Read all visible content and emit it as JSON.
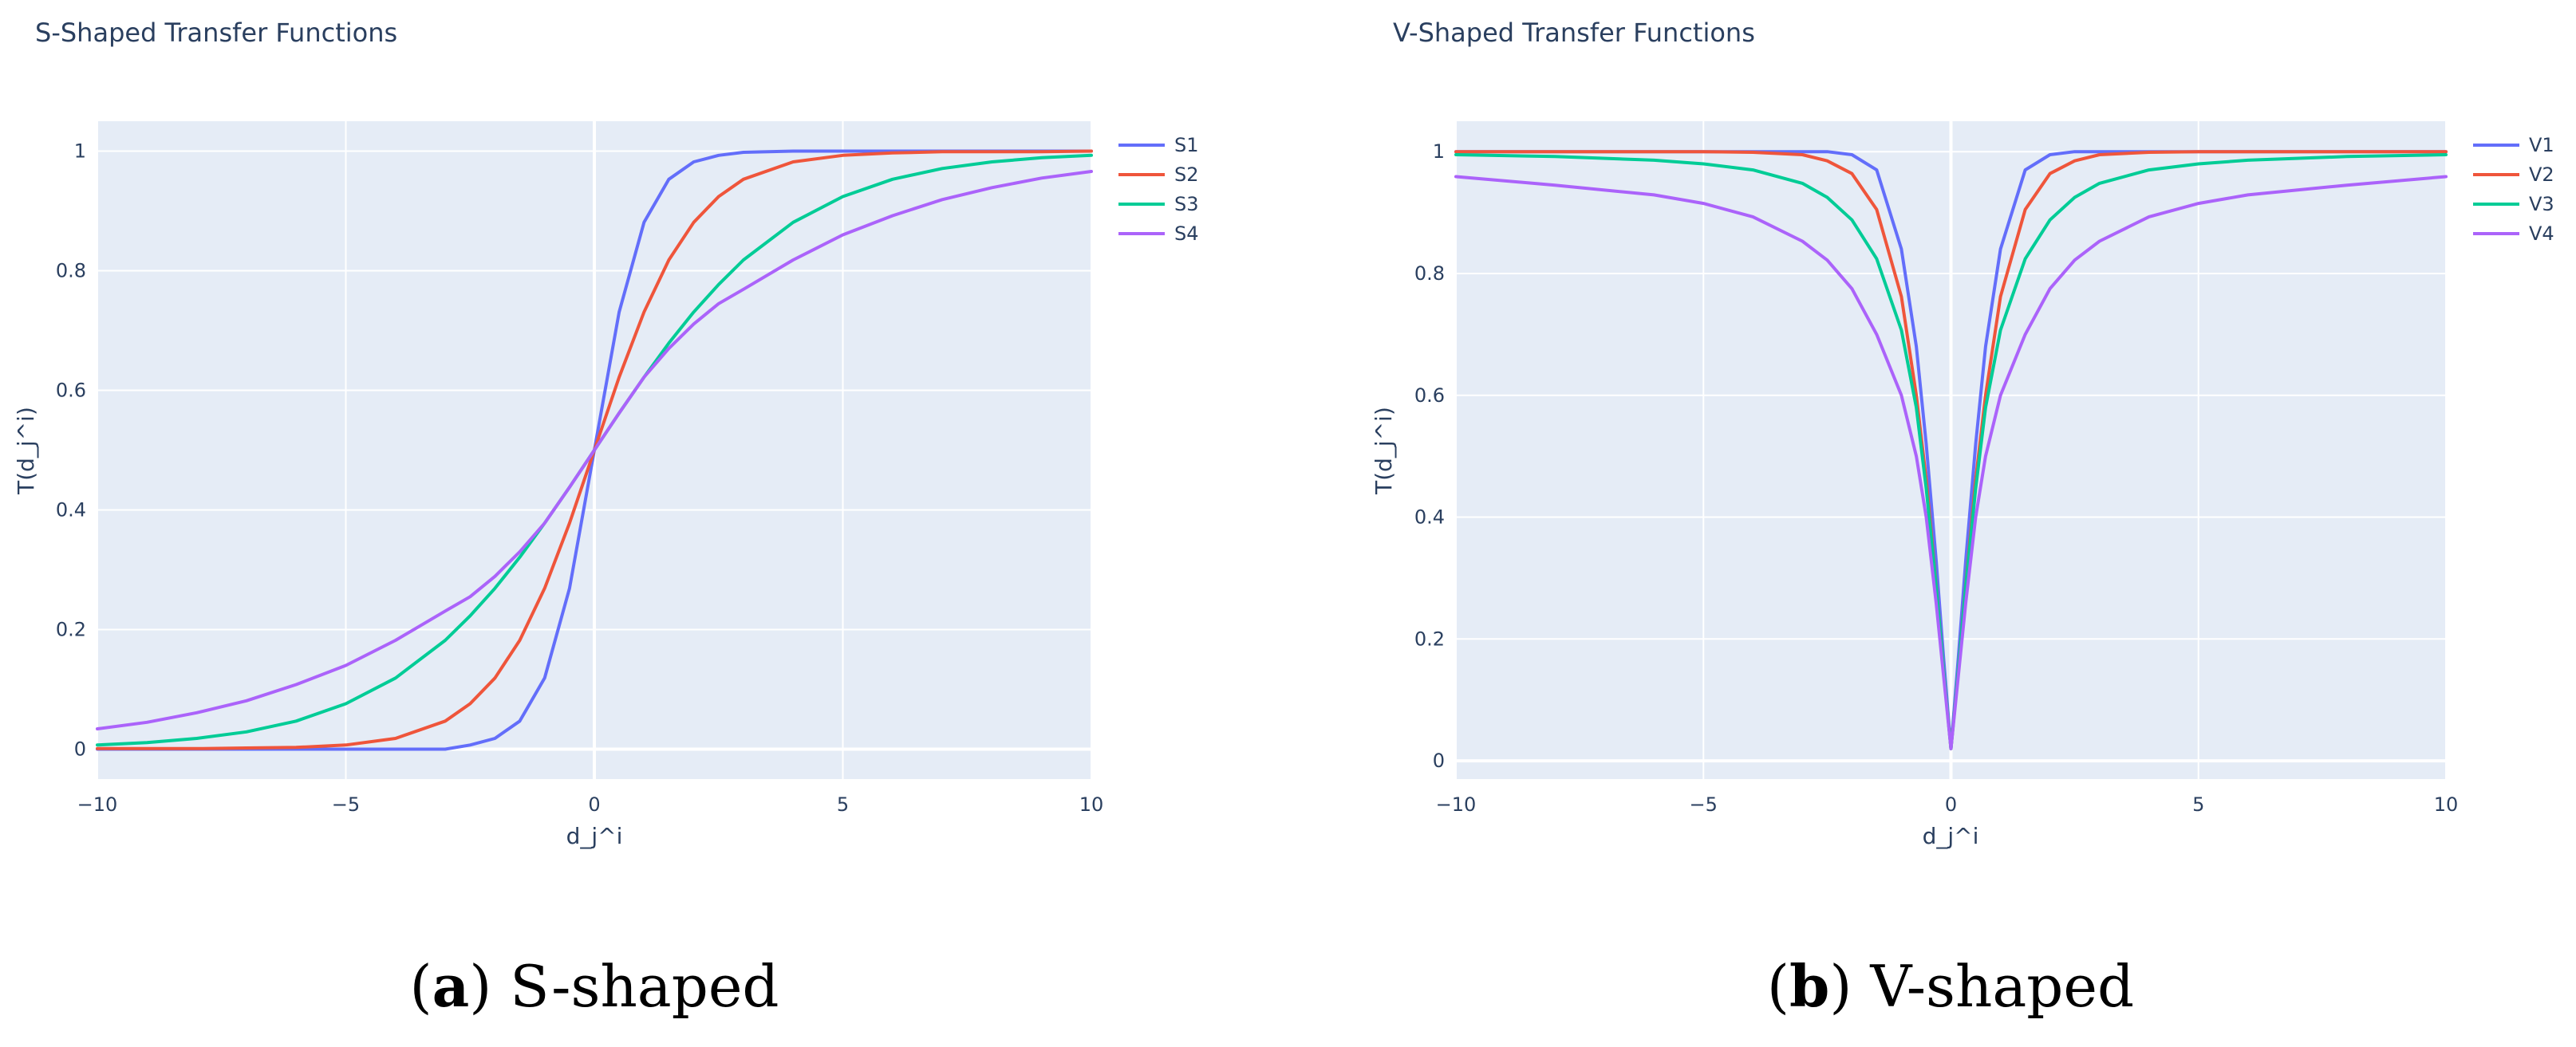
{
  "colors": {
    "plot_bg": "#e5ecf6",
    "grid": "#ffffff",
    "text": "#2a3f5f",
    "series": [
      "#636efa",
      "#ef553b",
      "#00cc96",
      "#ab63fa"
    ]
  },
  "captions": [
    {
      "letter": "a",
      "open": "(",
      "close": ")",
      "text": " S-shaped"
    },
    {
      "letter": "b",
      "open": "(",
      "close": ")",
      "text": " V-shaped"
    }
  ],
  "chart_data": [
    {
      "type": "line",
      "title": "S-Shaped Transfer Functions",
      "xlabel": "d_j^i",
      "ylabel": "T(d_j^i)",
      "xlim": [
        -10,
        10
      ],
      "ylim": [
        -0.05,
        1.05
      ],
      "xticks": [
        -10,
        -5,
        0,
        5,
        10
      ],
      "xticklabels": [
        "−10",
        "−5",
        "0",
        "5",
        "10"
      ],
      "yticks": [
        0,
        0.2,
        0.4,
        0.6,
        0.8,
        1
      ],
      "yticklabels": [
        "0",
        "0.2",
        "0.4",
        "0.6",
        "0.8",
        "1"
      ],
      "grid": true,
      "legend_position": "top-right",
      "x": [
        -10,
        -9,
        -8,
        -7,
        -6,
        -5,
        -4,
        -3,
        -2.5,
        -2,
        -1.5,
        -1,
        -0.5,
        0,
        0.5,
        1,
        1.5,
        2,
        2.5,
        3,
        4,
        5,
        6,
        7,
        8,
        9,
        10
      ],
      "series": [
        {
          "name": "S1",
          "values": [
            0,
            0,
            0,
            0,
            0,
            0,
            0,
            0,
            0.007,
            0.018,
            0.047,
            0.119,
            0.269,
            0.5,
            0.731,
            0.881,
            0.953,
            0.982,
            0.993,
            0.998,
            1,
            1,
            1,
            1,
            1,
            1,
            1
          ]
        },
        {
          "name": "S2",
          "values": [
            0.001,
            0.001,
            0.001,
            0.002,
            0.003,
            0.007,
            0.018,
            0.047,
            0.076,
            0.119,
            0.182,
            0.269,
            0.378,
            0.5,
            0.622,
            0.731,
            0.818,
            0.881,
            0.924,
            0.953,
            0.982,
            0.993,
            0.997,
            0.999,
            0.999,
            0.999,
            1
          ]
        },
        {
          "name": "S3",
          "values": [
            0.007,
            0.011,
            0.018,
            0.029,
            0.047,
            0.076,
            0.119,
            0.182,
            0.223,
            0.269,
            0.321,
            0.378,
            0.438,
            0.5,
            0.562,
            0.622,
            0.679,
            0.731,
            0.777,
            0.818,
            0.881,
            0.924,
            0.953,
            0.971,
            0.982,
            0.989,
            0.993
          ]
        },
        {
          "name": "S4",
          "values": [
            0.034,
            0.045,
            0.061,
            0.081,
            0.108,
            0.14,
            0.182,
            0.231,
            0.255,
            0.289,
            0.33,
            0.378,
            0.438,
            0.5,
            0.562,
            0.622,
            0.67,
            0.711,
            0.745,
            0.769,
            0.818,
            0.86,
            0.892,
            0.919,
            0.939,
            0.955,
            0.966
          ]
        }
      ]
    },
    {
      "type": "line",
      "title": "V-Shaped Transfer Functions",
      "xlabel": "d_j^i",
      "ylabel": "T(d_j^i)",
      "xlim": [
        -10,
        10
      ],
      "ylim": [
        -0.03,
        1.05
      ],
      "xticks": [
        -10,
        -5,
        0,
        5,
        10
      ],
      "xticklabels": [
        "−10",
        "−5",
        "0",
        "5",
        "10"
      ],
      "yticks": [
        0,
        0.2,
        0.4,
        0.6,
        0.8,
        1
      ],
      "yticklabels": [
        "0",
        "0.2",
        "0.4",
        "0.6",
        "0.8",
        "1"
      ],
      "grid": true,
      "legend_position": "top-right",
      "x": [
        -10,
        -8,
        -6,
        -5,
        -4,
        -3,
        -2.5,
        -2,
        -1.5,
        -1,
        -0.7,
        -0.5,
        -0.3,
        -0.15,
        0,
        0.15,
        0.3,
        0.5,
        0.7,
        1,
        1.5,
        2,
        2.5,
        3,
        4,
        5,
        6,
        8,
        10
      ],
      "series": [
        {
          "name": "V1",
          "values": [
            1,
            1,
            1,
            1,
            1,
            1,
            1,
            0.995,
            0.97,
            0.84,
            0.68,
            0.52,
            0.33,
            0.17,
            0.02,
            0.17,
            0.33,
            0.52,
            0.68,
            0.84,
            0.97,
            0.995,
            1,
            1,
            1,
            1,
            1,
            1,
            1
          ]
        },
        {
          "name": "V2",
          "values": [
            1,
            1,
            1,
            1,
            0.999,
            0.995,
            0.985,
            0.964,
            0.905,
            0.762,
            0.6,
            0.462,
            0.29,
            0.15,
            0.02,
            0.15,
            0.29,
            0.462,
            0.6,
            0.762,
            0.905,
            0.964,
            0.985,
            0.995,
            0.999,
            1,
            1,
            1,
            1
          ]
        },
        {
          "name": "V3",
          "values": [
            0.995,
            0.992,
            0.986,
            0.98,
            0.97,
            0.948,
            0.925,
            0.888,
            0.824,
            0.707,
            0.58,
            0.447,
            0.287,
            0.15,
            0.02,
            0.15,
            0.287,
            0.447,
            0.58,
            0.707,
            0.824,
            0.888,
            0.925,
            0.948,
            0.97,
            0.98,
            0.986,
            0.992,
            0.995
          ]
        },
        {
          "name": "V4",
          "values": [
            0.959,
            0.945,
            0.929,
            0.915,
            0.893,
            0.853,
            0.822,
            0.775,
            0.7,
            0.6,
            0.5,
            0.4,
            0.26,
            0.14,
            0.02,
            0.14,
            0.26,
            0.4,
            0.5,
            0.6,
            0.7,
            0.775,
            0.822,
            0.853,
            0.893,
            0.915,
            0.929,
            0.945,
            0.959
          ]
        }
      ]
    }
  ]
}
